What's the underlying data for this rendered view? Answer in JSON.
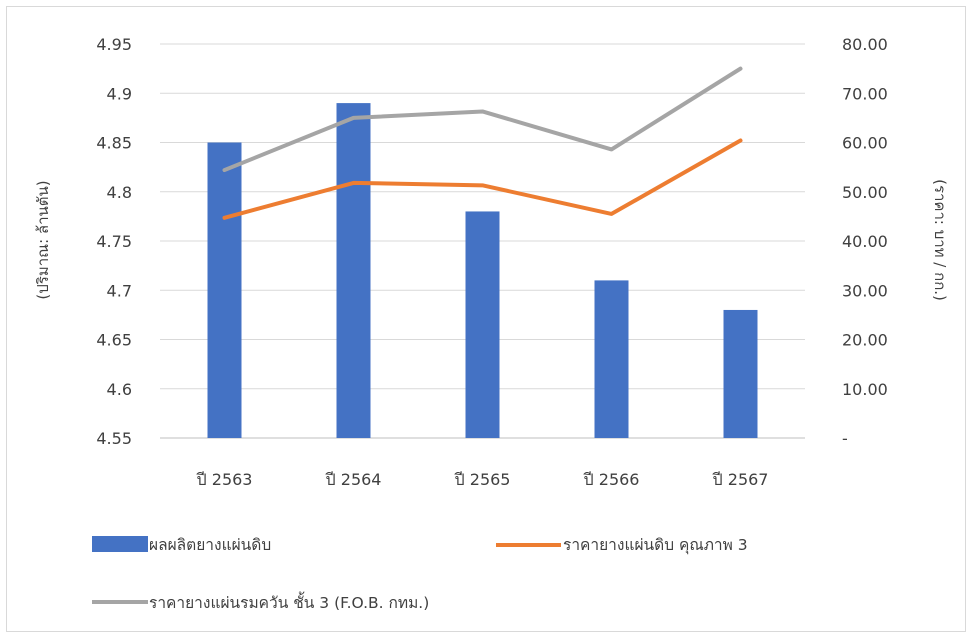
{
  "chart_data": {
    "type": "bar",
    "categories": [
      "ปี 2563",
      "ปี 2564",
      "ปี 2565",
      "ปี 2566",
      "ปี 2567"
    ],
    "series": [
      {
        "name": "ผลผลิตยางแผ่นดิบ",
        "type": "bar",
        "axis": "left",
        "color": "#4472c4",
        "values": [
          4.85,
          4.89,
          4.78,
          4.71,
          4.68
        ]
      },
      {
        "name": "ราคายางแผ่นดิบ คุณภาพ 3",
        "type": "line",
        "axis": "right",
        "color": "#ed7d31",
        "values": [
          44.7,
          51.8,
          51.3,
          45.5,
          60.4
        ]
      },
      {
        "name": "ราคายางแผ่นรมควัน ชั้น 3 (F.O.B. กทม.)",
        "type": "line",
        "axis": "right",
        "color": "#a5a5a5",
        "values": [
          54.4,
          65.0,
          66.3,
          58.6,
          75.0
        ]
      }
    ],
    "ylabel_left": "(ปริมาณ: ล้านตัน)",
    "ylabel_right": "(ราคา: บาท / กก.)",
    "ylim_left": [
      4.55,
      4.95
    ],
    "yticks_left": [
      "4.95",
      "4.9",
      "4.85",
      "4.8",
      "4.75",
      "4.7",
      "4.65",
      "4.6",
      "4.55"
    ],
    "ylim_right": [
      0,
      80
    ],
    "yticks_right": [
      "80.00",
      "70.00",
      "60.00",
      "50.00",
      "40.00",
      "30.00",
      "20.00",
      "10.00",
      "-"
    ],
    "grid": true,
    "legend_position": "bottom"
  }
}
